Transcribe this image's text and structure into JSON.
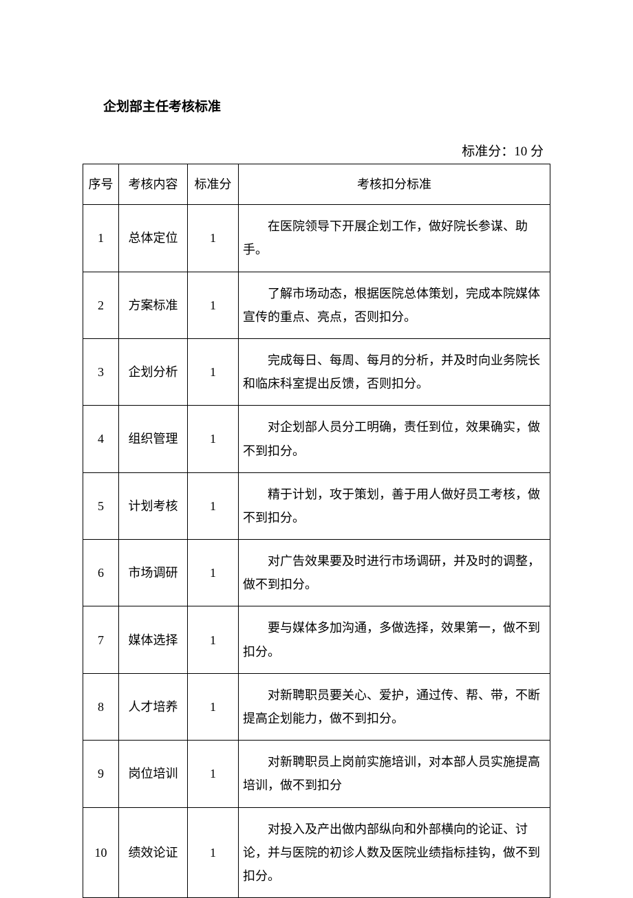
{
  "title": "企划部主任考核标准",
  "standard_score_label": "标准分：10 分",
  "table": {
    "columns": {
      "seq": "序号",
      "content": "考核内容",
      "score": "标准分",
      "criteria": "考核扣分标准"
    },
    "rows": [
      {
        "seq": "1",
        "content": "总体定位",
        "score": "1",
        "criteria": "在医院领导下开展企划工作，做好院长参谋、助手。"
      },
      {
        "seq": "2",
        "content": "方案标准",
        "score": "1",
        "criteria": "了解市场动态，根据医院总体策划，完成本院媒体宣传的重点、亮点，否则扣分。"
      },
      {
        "seq": "3",
        "content": "企划分析",
        "score": "1",
        "criteria": "完成每日、每周、每月的分析，并及时向业务院长和临床科室提出反馈，否则扣分。"
      },
      {
        "seq": "4",
        "content": "组织管理",
        "score": "1",
        "criteria": "对企划部人员分工明确，责任到位，效果确实，做不到扣分。"
      },
      {
        "seq": "5",
        "content": "计划考核",
        "score": "1",
        "criteria": "精于计划，攻于策划，善于用人做好员工考核，做不到扣分。"
      },
      {
        "seq": "6",
        "content": "市场调研",
        "score": "1",
        "criteria": "对广告效果要及时进行市场调研，并及时的调整，做不到扣分。"
      },
      {
        "seq": "7",
        "content": "媒体选择",
        "score": "1",
        "criteria": "要与媒体多加沟通，多做选择，效果第一，做不到扣分。"
      },
      {
        "seq": "8",
        "content": "人才培养",
        "score": "1",
        "criteria": "对新聘职员要关心、爱护，通过传、帮、带，不断提高企划能力，做不到扣分。"
      },
      {
        "seq": "9",
        "content": "岗位培训",
        "score": "1",
        "criteria": "对新聘职员上岗前实施培训，对本部人员实施提高培训，做不到扣分"
      },
      {
        "seq": "10",
        "content": "绩效论证",
        "score": "1",
        "criteria": "对投入及产出做内部纵向和外部横向的论证、讨论，并与医院的初诊人数及医院业绩指标挂钩，做不到扣分。"
      }
    ]
  },
  "style": {
    "background_color": "#ffffff",
    "text_color": "#000000",
    "border_color": "#000000",
    "font_family": "SimSun",
    "title_fontsize": 19,
    "body_fontsize": 18,
    "col_widths": {
      "seq": 52,
      "content": 100,
      "score": 74
    }
  }
}
